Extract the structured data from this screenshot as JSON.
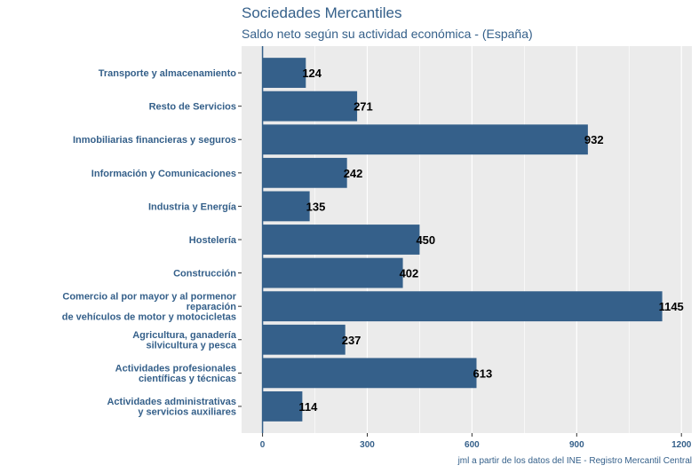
{
  "title": "Sociedades Mercantiles",
  "subtitle": "Saldo neto según su actividad económica - (España)",
  "caption": "jml a partir de los datos del INE - Registro Mercantil Central",
  "colors": {
    "bar": "#35608a",
    "panel": "#ebebeb",
    "grid": "#ffffff",
    "text": "#35608a"
  },
  "chart_data": {
    "type": "bar",
    "orientation": "horizontal",
    "categories": [
      [
        "Transporte y almacenamiento"
      ],
      [
        "Resto de Servicios"
      ],
      [
        "Inmobiliarias financieras y seguros"
      ],
      [
        "Información y Comunicaciones"
      ],
      [
        "Industria y Energía"
      ],
      [
        "Hostelería"
      ],
      [
        "Construcción"
      ],
      [
        "Comercio al por mayor y al pormenor",
        "reparación",
        "de vehículos de motor y motocicletas"
      ],
      [
        "Agricultura, ganadería",
        "silvicultura y pesca"
      ],
      [
        "Actividades profesionales",
        "científicas y técnicas"
      ],
      [
        "Actividades administrativas",
        "y servicios auxiliares"
      ]
    ],
    "values": [
      124,
      271,
      932,
      242,
      135,
      450,
      402,
      1145,
      237,
      613,
      114
    ],
    "xlim": [
      -60,
      1230
    ],
    "xticks": [
      0,
      300,
      600,
      900,
      1200
    ],
    "grid": true
  }
}
